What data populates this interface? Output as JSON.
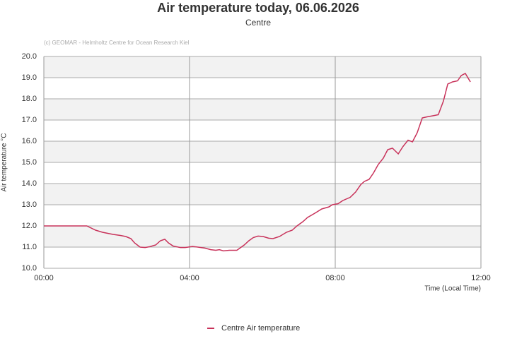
{
  "chart_data": {
    "type": "line",
    "title": "Air temperature today, 06.06.2026",
    "subtitle": "Centre",
    "credit": "(c) GEOMAR - Helmholtz Centre for Ocean Research Kiel",
    "xlabel": "Time (Local Time)",
    "ylabel": "Air temperature °C",
    "x": [
      0,
      0.5,
      1.0,
      1.18,
      1.42,
      1.61,
      1.9,
      2.1,
      2.25,
      2.39,
      2.49,
      2.64,
      2.78,
      2.91,
      3.07,
      3.2,
      3.32,
      3.42,
      3.55,
      3.75,
      3.88,
      4.08,
      4.23,
      4.43,
      4.58,
      4.72,
      4.82,
      4.93,
      5.09,
      5.3,
      5.5,
      5.63,
      5.75,
      5.88,
      6.02,
      6.17,
      6.29,
      6.47,
      6.66,
      6.82,
      6.95,
      7.11,
      7.24,
      7.44,
      7.63,
      7.83,
      7.92,
      8.08,
      8.21,
      8.41,
      8.56,
      8.7,
      8.8,
      8.93,
      9.05,
      9.18,
      9.32,
      9.44,
      9.57,
      9.73,
      9.86,
      10.0,
      10.12,
      10.25,
      10.39,
      10.52,
      10.68,
      10.83,
      10.97,
      11.09,
      11.22,
      11.36,
      11.46,
      11.57,
      11.71
    ],
    "series": [
      {
        "name": "Centre Air temperature",
        "color": "#c8325a",
        "values": [
          12.0,
          12.0,
          12.0,
          12.0,
          11.8,
          11.7,
          11.6,
          11.55,
          11.5,
          11.4,
          11.2,
          11.0,
          10.98,
          11.02,
          11.1,
          11.3,
          11.37,
          11.2,
          11.05,
          10.98,
          10.98,
          11.03,
          11.0,
          10.95,
          10.88,
          10.85,
          10.88,
          10.82,
          10.85,
          10.85,
          11.1,
          11.3,
          11.45,
          11.52,
          11.5,
          11.42,
          11.4,
          11.5,
          11.7,
          11.8,
          12.0,
          12.2,
          12.4,
          12.6,
          12.8,
          12.9,
          13.0,
          13.05,
          13.2,
          13.35,
          13.6,
          13.95,
          14.1,
          14.2,
          14.5,
          14.9,
          15.2,
          15.6,
          15.67,
          15.4,
          15.75,
          16.05,
          15.97,
          16.4,
          17.1,
          17.15,
          17.2,
          17.25,
          17.9,
          18.7,
          18.8,
          18.85,
          19.1,
          19.2,
          18.8
        ]
      }
    ],
    "xlim": [
      0,
      12
    ],
    "xticks": [
      {
        "value": 0,
        "label": "00:00"
      },
      {
        "value": 4,
        "label": "04:00"
      },
      {
        "value": 8,
        "label": "08:00"
      },
      {
        "value": 12,
        "label": "12:00"
      }
    ],
    "ylim": [
      10,
      20
    ],
    "yticks": [
      {
        "value": 10,
        "label": "10.0"
      },
      {
        "value": 11,
        "label": "11.0"
      },
      {
        "value": 12,
        "label": "12.0"
      },
      {
        "value": 13,
        "label": "13.0"
      },
      {
        "value": 14,
        "label": "14.0"
      },
      {
        "value": 15,
        "label": "15.0"
      },
      {
        "value": 16,
        "label": "16.0"
      },
      {
        "value": 17,
        "label": "17.0"
      },
      {
        "value": 18,
        "label": "18.0"
      },
      {
        "value": 19,
        "label": "19.0"
      },
      {
        "value": 20,
        "label": "20.0"
      }
    ],
    "grid": true,
    "legend": "bottom"
  }
}
